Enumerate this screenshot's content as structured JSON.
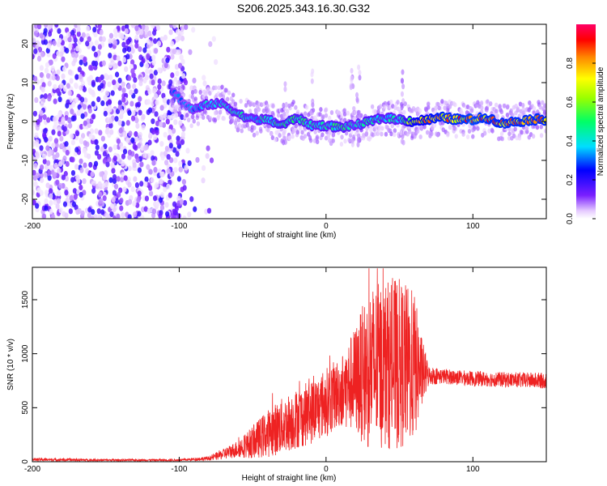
{
  "title": "S206.2025.343.16.30.G32",
  "chart_data": [
    {
      "type": "heatmap",
      "xlabel": "Height of straight line (km)",
      "ylabel": "Frequency (Hz)",
      "xlim": [
        -200,
        150
      ],
      "ylim": [
        -25,
        25
      ],
      "xticks": [
        -200,
        -100,
        0,
        100
      ],
      "yticks": [
        -20,
        -10,
        0,
        10,
        20
      ],
      "colorbar": {
        "label": "Normalized spectral amplitude",
        "range": [
          0,
          1
        ],
        "ticks": [
          0.0,
          0.2,
          0.4,
          0.6,
          0.8
        ],
        "tick_labels": [
          "0.0",
          "0.2",
          "0.4",
          "0.6",
          "0.8"
        ]
      },
      "ridge": [
        {
          "x": -105,
          "f": 8,
          "amp": 0.35
        },
        {
          "x": -95,
          "f": 4,
          "amp": 0.3
        },
        {
          "x": -90,
          "f": 3,
          "amp": 0.35
        },
        {
          "x": -80,
          "f": 4.5,
          "amp": 0.4
        },
        {
          "x": -70,
          "f": 4.5,
          "amp": 0.4
        },
        {
          "x": -60,
          "f": 2,
          "amp": 0.45
        },
        {
          "x": -50,
          "f": 0.5,
          "amp": 0.4
        },
        {
          "x": -40,
          "f": 0.5,
          "amp": 0.45
        },
        {
          "x": -30,
          "f": -1,
          "amp": 0.5
        },
        {
          "x": -20,
          "f": 1,
          "amp": 0.5
        },
        {
          "x": -10,
          "f": -1,
          "amp": 0.45
        },
        {
          "x": 0,
          "f": -1,
          "amp": 0.45
        },
        {
          "x": 10,
          "f": -1.5,
          "amp": 0.5
        },
        {
          "x": 20,
          "f": -1,
          "amp": 0.4
        },
        {
          "x": 30,
          "f": 0,
          "amp": 0.5
        },
        {
          "x": 40,
          "f": 1,
          "amp": 0.45
        },
        {
          "x": 50,
          "f": 0.5,
          "amp": 0.45
        },
        {
          "x": 60,
          "f": 0,
          "amp": 0.75
        },
        {
          "x": 70,
          "f": 0.5,
          "amp": 0.8
        },
        {
          "x": 80,
          "f": 1,
          "amp": 0.85
        },
        {
          "x": 90,
          "f": 0.5,
          "amp": 0.85
        },
        {
          "x": 100,
          "f": 0.5,
          "amp": 0.9
        },
        {
          "x": 110,
          "f": 1,
          "amp": 0.85
        },
        {
          "x": 120,
          "f": -0.5,
          "amp": 0.85
        },
        {
          "x": 130,
          "f": 0,
          "amp": 0.85
        },
        {
          "x": 140,
          "f": 0.5,
          "amp": 0.85
        },
        {
          "x": 150,
          "f": 0.5,
          "amp": 0.85
        }
      ]
    },
    {
      "type": "line",
      "xlabel": "Height of straight line (km)",
      "ylabel": "SNR (10 * v/v)",
      "xlim": [
        -200,
        150
      ],
      "ylim": [
        0,
        1800
      ],
      "xticks": [
        -200,
        -100,
        0,
        100
      ],
      "yticks": [
        0,
        500,
        1000,
        1500
      ],
      "color": "#ee2222",
      "envelope": [
        {
          "x": -200,
          "base": 20,
          "spread": 15
        },
        {
          "x": -150,
          "base": 15,
          "spread": 10
        },
        {
          "x": -100,
          "base": 15,
          "spread": 10
        },
        {
          "x": -80,
          "base": 30,
          "spread": 20
        },
        {
          "x": -70,
          "base": 70,
          "spread": 50
        },
        {
          "x": -60,
          "base": 120,
          "spread": 80
        },
        {
          "x": -50,
          "base": 180,
          "spread": 150
        },
        {
          "x": -40,
          "base": 260,
          "spread": 220
        },
        {
          "x": -30,
          "base": 330,
          "spread": 260
        },
        {
          "x": -20,
          "base": 400,
          "spread": 280
        },
        {
          "x": -10,
          "base": 460,
          "spread": 300
        },
        {
          "x": 0,
          "base": 550,
          "spread": 320
        },
        {
          "x": 10,
          "base": 650,
          "spread": 330
        },
        {
          "x": 20,
          "base": 760,
          "spread": 500
        },
        {
          "x": 30,
          "base": 860,
          "spread": 780
        },
        {
          "x": 40,
          "base": 900,
          "spread": 780
        },
        {
          "x": 50,
          "base": 900,
          "spread": 800
        },
        {
          "x": 60,
          "base": 880,
          "spread": 700
        },
        {
          "x": 65,
          "base": 820,
          "spread": 350
        },
        {
          "x": 70,
          "base": 800,
          "spread": 90
        },
        {
          "x": 80,
          "base": 790,
          "spread": 70
        },
        {
          "x": 100,
          "base": 770,
          "spread": 70
        },
        {
          "x": 120,
          "base": 760,
          "spread": 70
        },
        {
          "x": 150,
          "base": 750,
          "spread": 75
        }
      ]
    }
  ]
}
